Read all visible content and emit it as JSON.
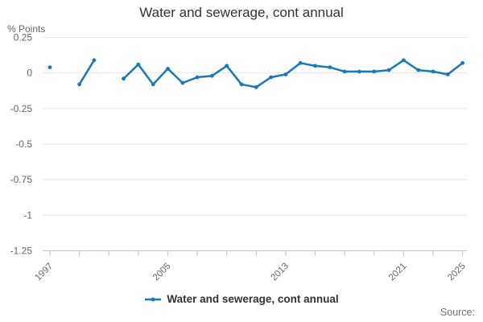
{
  "page": {
    "title": "Water and sewerage, cont annual"
  },
  "chart_data": {
    "type": "line",
    "title": "Water and sewerage, cont annual",
    "ylabel": "% Points",
    "xlabel": "",
    "grid": "horizontal",
    "legend_position": "bottom",
    "ylim": [
      -1.25,
      0.25
    ],
    "y_ticks": [
      {
        "v": 0.25,
        "label": "0.25"
      },
      {
        "v": 0,
        "label": "0"
      },
      {
        "v": -0.25,
        "label": "-0.25"
      },
      {
        "v": -0.5,
        "label": "-0.5"
      },
      {
        "v": -0.75,
        "label": "-0.75"
      },
      {
        "v": -1,
        "label": "-1"
      },
      {
        "v": -1.25,
        "label": "-1.25"
      }
    ],
    "x_tick_years": [
      1997,
      1999,
      2001,
      2003,
      2005,
      2007,
      2009,
      2011,
      2013,
      2015,
      2017,
      2019,
      2021,
      2023,
      2025
    ],
    "x_labeled_years": [
      "1997",
      "2005",
      "2013",
      "2021",
      "2025"
    ],
    "x": [
      1997,
      1998,
      1999,
      2000,
      2001,
      2002,
      2003,
      2004,
      2005,
      2006,
      2007,
      2008,
      2009,
      2010,
      2011,
      2012,
      2013,
      2014,
      2015,
      2016,
      2017,
      2018,
      2019,
      2020,
      2021,
      2022,
      2023,
      2024,
      2025
    ],
    "series": [
      {
        "name": "Water and sewerage, cont annual",
        "values": [
          0.04,
          null,
          -0.08,
          0.09,
          null,
          -0.04,
          0.06,
          -0.08,
          0.03,
          -0.07,
          -0.03,
          -0.02,
          0.05,
          -0.08,
          -0.1,
          -0.03,
          -0.01,
          0.07,
          0.05,
          0.04,
          0.01,
          0.01,
          0.01,
          0.02,
          0.09,
          0.02,
          0.01,
          -0.01,
          0.07
        ]
      }
    ]
  },
  "legend": {
    "label": "Water and sewerage, cont annual"
  },
  "footer": {
    "source_label": "Source:"
  },
  "colors": {
    "series": "#1779ba",
    "grid": "#e6e6e6",
    "axis": "#bcc9d8",
    "tick_text": "#666666",
    "title_text": "#333333",
    "legend_text": "#333333",
    "source_text": "#737373"
  }
}
